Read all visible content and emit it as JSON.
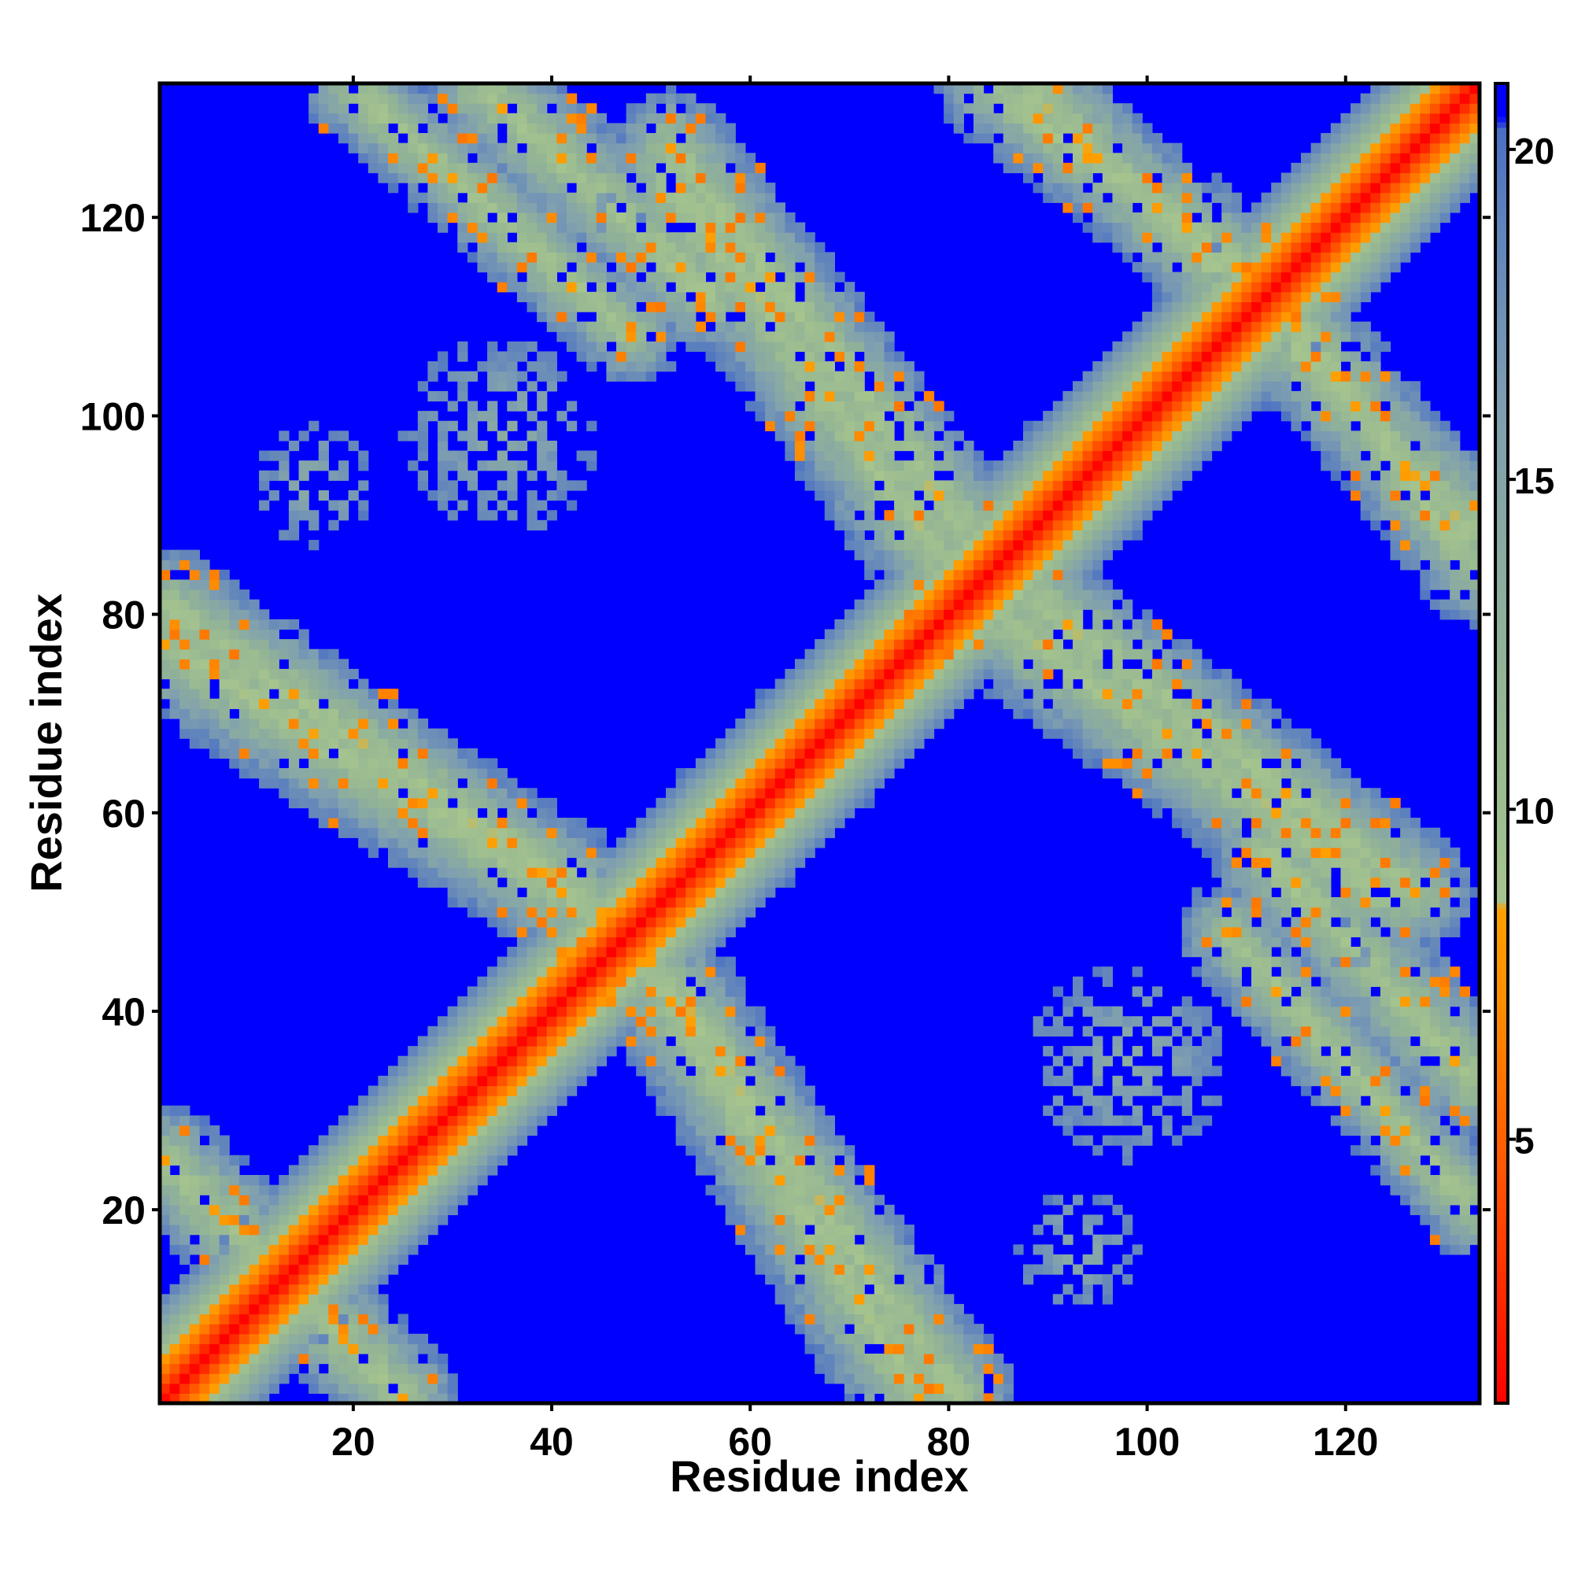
{
  "chart_data": {
    "type": "heatmap",
    "xlabel": "Residue index",
    "ylabel": "Residue index",
    "n_residues": 133,
    "xlim": [
      1,
      133
    ],
    "ylim": [
      1,
      133
    ],
    "x_ticks": [
      20,
      40,
      60,
      80,
      100,
      120
    ],
    "y_ticks": [
      20,
      40,
      60,
      80,
      100,
      120
    ],
    "colorbar": {
      "ticks": [
        5,
        10,
        15,
        20
      ],
      "range": [
        1,
        21
      ],
      "stops": [
        {
          "value": 1,
          "color": "#ff0000"
        },
        {
          "value": 4,
          "color": "#ff4a00"
        },
        {
          "value": 7,
          "color": "#ff8c00"
        },
        {
          "value": 8.5,
          "color": "#ffa000"
        },
        {
          "value": 8.6,
          "color": "#a5c48e"
        },
        {
          "value": 12,
          "color": "#93b495"
        },
        {
          "value": 16,
          "color": "#7f9fb0"
        },
        {
          "value": 19,
          "color": "#5e82bd"
        },
        {
          "value": 20.3,
          "color": "#4a6fc4"
        },
        {
          "value": 20.5,
          "color": "#0000ff"
        },
        {
          "value": 21,
          "color": "#0000ff"
        }
      ]
    },
    "cutoff": 20,
    "background_color": "#0000ff",
    "diagonal_band_half_width": 11,
    "contact_bands": [
      {
        "from": [
          1,
          81
        ],
        "to": [
          48,
          48
        ],
        "width": 6
      },
      {
        "from": [
          48,
          48
        ],
        "to": [
          77,
          1
        ],
        "width": 7
      },
      {
        "from": [
          20,
          133
        ],
        "to": [
          48,
          108
        ],
        "width": 5
      },
      {
        "from": [
          52,
          127
        ],
        "to": [
          87,
          82
        ],
        "width": 6
      },
      {
        "from": [
          82,
          82
        ],
        "to": [
          124,
          52
        ],
        "width": 7
      },
      {
        "from": [
          85,
          133
        ],
        "to": [
          113,
          112
        ],
        "width": 6
      },
      {
        "from": [
          112,
          110
        ],
        "to": [
          133,
          88
        ],
        "width": 6
      },
      {
        "from": [
          112,
          56
        ],
        "to": [
          133,
          33
        ],
        "width": 6
      },
      {
        "from": [
          1,
          25
        ],
        "to": [
          25,
          1
        ],
        "width": 6
      }
    ],
    "contact_patches": [
      {
        "center": [
          35,
          98
        ],
        "radius": 10
      },
      {
        "center": [
          97,
          35
        ],
        "radius": 10
      },
      {
        "center": [
          93,
          16
        ],
        "radius": 6
      },
      {
        "center": [
          16,
          93
        ],
        "radius": 6
      },
      {
        "center": [
          124,
          43
        ],
        "radius": 8
      },
      {
        "center": [
          43,
          124
        ],
        "radius": 8
      }
    ]
  }
}
